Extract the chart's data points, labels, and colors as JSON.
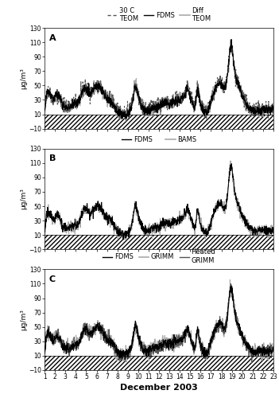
{
  "title": "December 2003",
  "panel_labels": [
    "A",
    "B",
    "C"
  ],
  "ylim": [
    -10,
    130
  ],
  "yticks": [
    -10,
    10,
    30,
    50,
    70,
    90,
    110,
    130
  ],
  "xticks": [
    1,
    2,
    3,
    4,
    5,
    6,
    7,
    8,
    9,
    10,
    11,
    12,
    13,
    14,
    15,
    16,
    17,
    18,
    19,
    20,
    21,
    22,
    23
  ],
  "ylabel": "μg/m³",
  "seed": 42,
  "n_points": 1320
}
